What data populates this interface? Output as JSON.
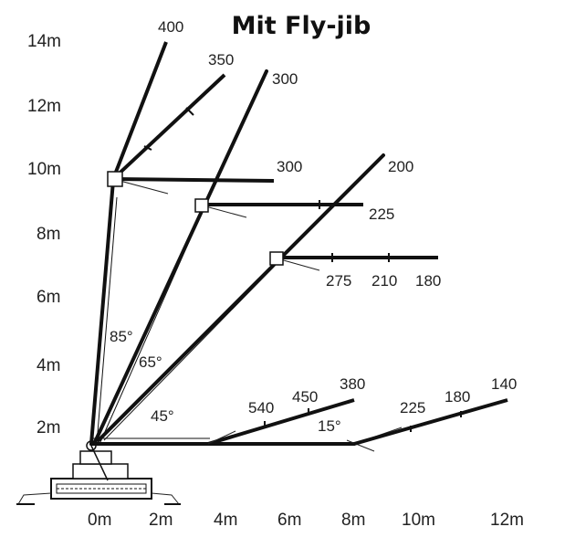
{
  "title": "Mit Fly-jib",
  "y_axis": [
    "14m",
    "12m",
    "10m",
    "8m",
    "6m",
    "4m",
    "2m"
  ],
  "x_axis": [
    "0m",
    "2m",
    "4m",
    "6m",
    "8m",
    "10m",
    "12m"
  ],
  "angles": {
    "a85": "85°",
    "a65": "65°",
    "a45": "45°",
    "a15": "15°"
  },
  "loads": {
    "l400": "400",
    "l350": "350",
    "l300_top": "300",
    "l300_mid": "300",
    "l200": "200",
    "l225_mid": "225",
    "l275": "275",
    "l210": "210",
    "l180_mid": "180",
    "l540": "540",
    "l450": "450",
    "l380": "380",
    "l225_low": "225",
    "l180_low": "180",
    "l140": "140"
  }
}
